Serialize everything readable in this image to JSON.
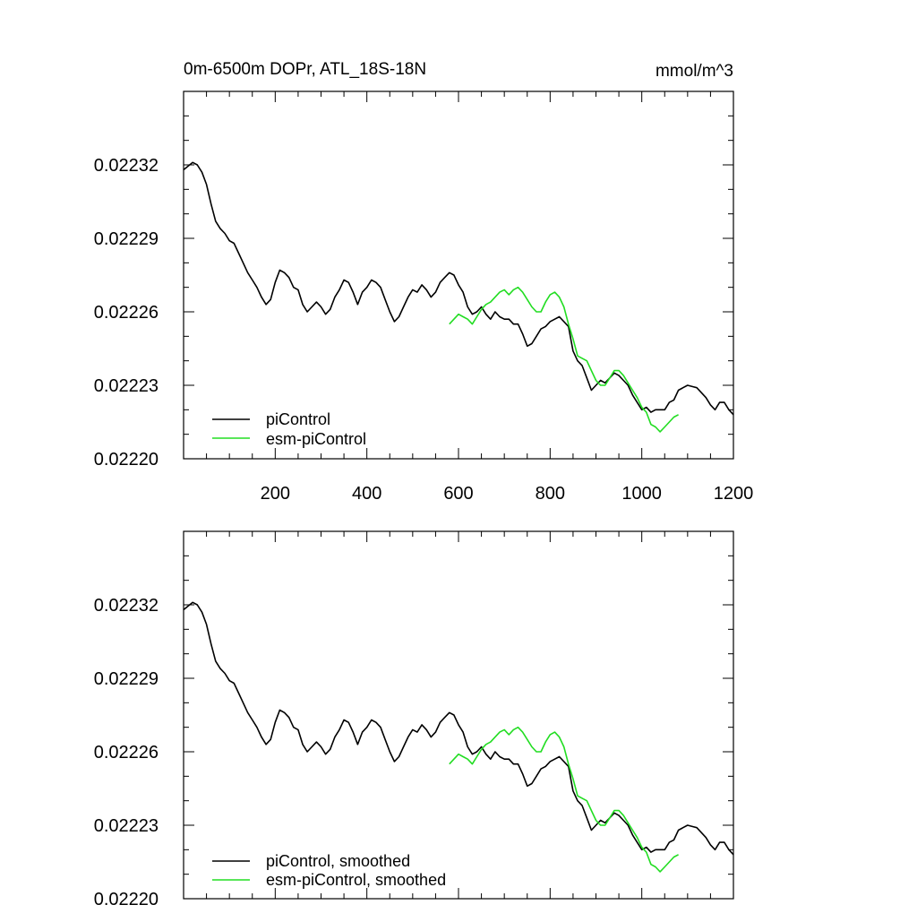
{
  "chart_data": [
    {
      "type": "line",
      "panel": "raw",
      "title": "0m-6500m DOPr, ATL_18S-18N",
      "units": "mmol/m^3",
      "xlim": [
        0,
        1200
      ],
      "ylim": [
        0.0222,
        0.02235
      ],
      "xticks": [
        200,
        400,
        600,
        800,
        1000,
        1200
      ],
      "xtick_labels": [
        "200",
        "400",
        "600",
        "800",
        "1000",
        "1200"
      ],
      "yticks": [
        0.0222,
        0.02223,
        0.02226,
        0.02229,
        0.02232
      ],
      "ytick_labels": [
        "0.02220",
        "0.02223",
        "0.02226",
        "0.02229",
        "0.02232"
      ],
      "legend_position": "bottom-left",
      "series": [
        {
          "name": "piControl",
          "color": "#000000",
          "x": [
            0,
            10,
            20,
            30,
            40,
            50,
            60,
            70,
            80,
            90,
            100,
            110,
            120,
            130,
            140,
            150,
            160,
            170,
            180,
            190,
            200,
            210,
            220,
            230,
            240,
            250,
            260,
            270,
            280,
            290,
            300,
            310,
            320,
            330,
            340,
            350,
            360,
            370,
            380,
            390,
            400,
            410,
            420,
            430,
            440,
            450,
            460,
            470,
            480,
            490,
            500,
            510,
            520,
            530,
            540,
            550,
            560,
            570,
            580,
            590,
            600,
            610,
            620,
            630,
            640,
            650,
            660,
            670,
            680,
            690,
            700,
            710,
            720,
            730,
            740,
            750,
            760,
            770,
            780,
            790,
            800,
            810,
            820,
            830,
            840,
            850,
            860,
            870,
            880,
            890,
            900,
            910,
            920,
            930,
            940,
            950,
            960,
            970,
            980,
            990,
            1000,
            1010,
            1020,
            1030,
            1040,
            1050,
            1060,
            1070,
            1080,
            1090,
            1100,
            1110,
            1120,
            1130,
            1140,
            1150,
            1160,
            1170,
            1180,
            1190,
            1200
          ],
          "values": [
            0.022318,
            0.0223195,
            0.022321,
            0.02232,
            0.022317,
            0.022312,
            0.022304,
            0.022297,
            0.022294,
            0.022292,
            0.022289,
            0.022288,
            0.022284,
            0.02228,
            0.022276,
            0.022273,
            0.02227,
            0.022266,
            0.022263,
            0.022265,
            0.022272,
            0.022277,
            0.022276,
            0.022274,
            0.02227,
            0.022269,
            0.022263,
            0.02226,
            0.022262,
            0.022264,
            0.022262,
            0.022259,
            0.022261,
            0.022266,
            0.022269,
            0.022273,
            0.022272,
            0.022268,
            0.022263,
            0.022268,
            0.02227,
            0.022273,
            0.022272,
            0.02227,
            0.022265,
            0.02226,
            0.022256,
            0.022258,
            0.022262,
            0.022266,
            0.022269,
            0.022268,
            0.022271,
            0.022269,
            0.022266,
            0.022268,
            0.022272,
            0.022274,
            0.022276,
            0.022275,
            0.022271,
            0.022268,
            0.022262,
            0.022259,
            0.02226,
            0.022262,
            0.022259,
            0.022257,
            0.02226,
            0.022258,
            0.022257,
            0.022257,
            0.022255,
            0.022255,
            0.022251,
            0.022246,
            0.022247,
            0.02225,
            0.022253,
            0.022254,
            0.022256,
            0.022257,
            0.022258,
            0.022256,
            0.022254,
            0.022244,
            0.02224,
            0.022238,
            0.022233,
            0.022228,
            0.02223,
            0.022232,
            0.022231,
            0.022233,
            0.022235,
            0.022234,
            0.022232,
            0.02223,
            0.022226,
            0.022223,
            0.02222,
            0.022221,
            0.022219,
            0.02222,
            0.02222,
            0.02222,
            0.022223,
            0.022224,
            0.022228,
            0.022229,
            0.02223,
            0.0222295,
            0.022229,
            0.022227,
            0.022225,
            0.022222,
            0.02222,
            0.022223,
            0.022223,
            0.02222,
            0.022218
          ]
        },
        {
          "name": "esm-piControl",
          "color": "#22dd22",
          "x": [
            580,
            590,
            600,
            610,
            620,
            630,
            640,
            650,
            660,
            670,
            680,
            690,
            700,
            710,
            720,
            730,
            740,
            750,
            760,
            770,
            780,
            790,
            800,
            810,
            820,
            830,
            840,
            850,
            860,
            870,
            880,
            890,
            900,
            910,
            920,
            930,
            940,
            950,
            960,
            970,
            980,
            990,
            1000,
            1010,
            1020,
            1030,
            1040,
            1050,
            1060,
            1070,
            1080
          ],
          "values": [
            0.022255,
            0.022257,
            0.022259,
            0.022258,
            0.022257,
            0.022255,
            0.022258,
            0.022261,
            0.022263,
            0.022264,
            0.022266,
            0.022268,
            0.022269,
            0.022267,
            0.022269,
            0.02227,
            0.022268,
            0.022265,
            0.022262,
            0.02226,
            0.02226,
            0.022264,
            0.022267,
            0.022268,
            0.022266,
            0.022262,
            0.022255,
            0.022249,
            0.022242,
            0.022241,
            0.02224,
            0.022236,
            0.022232,
            0.02223,
            0.02223,
            0.022233,
            0.022236,
            0.022236,
            0.022234,
            0.022231,
            0.022228,
            0.022225,
            0.022221,
            0.022219,
            0.022214,
            0.022213,
            0.022211,
            0.022213,
            0.022215,
            0.022217,
            0.022218
          ]
        }
      ]
    },
    {
      "type": "line",
      "panel": "smoothed",
      "xlim": [
        0,
        1200
      ],
      "ylim": [
        0.0222,
        0.02235
      ],
      "yticks": [
        0.0222,
        0.02223,
        0.02226,
        0.02229,
        0.02232
      ],
      "ytick_labels": [
        "0.02220",
        "0.02223",
        "0.02226",
        "0.02229",
        "0.02232"
      ],
      "legend_position": "bottom-left",
      "series": [
        {
          "name": "piControl, smoothed",
          "color": "#000000",
          "x": [
            0,
            10,
            20,
            30,
            40,
            50,
            60,
            70,
            80,
            90,
            100,
            110,
            120,
            130,
            140,
            150,
            160,
            170,
            180,
            190,
            200,
            210,
            220,
            230,
            240,
            250,
            260,
            270,
            280,
            290,
            300,
            310,
            320,
            330,
            340,
            350,
            360,
            370,
            380,
            390,
            400,
            410,
            420,
            430,
            440,
            450,
            460,
            470,
            480,
            490,
            500,
            510,
            520,
            530,
            540,
            550,
            560,
            570,
            580,
            590,
            600,
            610,
            620,
            630,
            640,
            650,
            660,
            670,
            680,
            690,
            700,
            710,
            720,
            730,
            740,
            750,
            760,
            770,
            780,
            790,
            800,
            810,
            820,
            830,
            840,
            850,
            860,
            870,
            880,
            890,
            900,
            910,
            920,
            930,
            940,
            950,
            960,
            970,
            980,
            990,
            1000,
            1010,
            1020,
            1030,
            1040,
            1050,
            1060,
            1070,
            1080,
            1090,
            1100,
            1110,
            1120,
            1130,
            1140,
            1150,
            1160,
            1170,
            1180,
            1190,
            1200
          ],
          "values": [
            0.022318,
            0.0223195,
            0.022321,
            0.02232,
            0.022317,
            0.022312,
            0.022304,
            0.022297,
            0.022294,
            0.022292,
            0.022289,
            0.022288,
            0.022284,
            0.02228,
            0.022276,
            0.022273,
            0.02227,
            0.022266,
            0.022263,
            0.022265,
            0.022272,
            0.022277,
            0.022276,
            0.022274,
            0.02227,
            0.022269,
            0.022263,
            0.02226,
            0.022262,
            0.022264,
            0.022262,
            0.022259,
            0.022261,
            0.022266,
            0.022269,
            0.022273,
            0.022272,
            0.022268,
            0.022263,
            0.022268,
            0.02227,
            0.022273,
            0.022272,
            0.02227,
            0.022265,
            0.02226,
            0.022256,
            0.022258,
            0.022262,
            0.022266,
            0.022269,
            0.022268,
            0.022271,
            0.022269,
            0.022266,
            0.022268,
            0.022272,
            0.022274,
            0.022276,
            0.022275,
            0.022271,
            0.022268,
            0.022262,
            0.022259,
            0.02226,
            0.022262,
            0.022259,
            0.022257,
            0.02226,
            0.022258,
            0.022257,
            0.022257,
            0.022255,
            0.022255,
            0.022251,
            0.022246,
            0.022247,
            0.02225,
            0.022253,
            0.022254,
            0.022256,
            0.022257,
            0.022258,
            0.022256,
            0.022254,
            0.022244,
            0.02224,
            0.022238,
            0.022233,
            0.022228,
            0.02223,
            0.022232,
            0.022231,
            0.022233,
            0.022235,
            0.022234,
            0.022232,
            0.02223,
            0.022226,
            0.022223,
            0.02222,
            0.022221,
            0.022219,
            0.02222,
            0.02222,
            0.02222,
            0.022223,
            0.022224,
            0.022228,
            0.022229,
            0.02223,
            0.0222295,
            0.022229,
            0.022227,
            0.022225,
            0.022222,
            0.02222,
            0.022223,
            0.022223,
            0.02222,
            0.022218
          ]
        },
        {
          "name": "esm-piControl, smoothed",
          "color": "#22dd22",
          "x": [
            580,
            590,
            600,
            610,
            620,
            630,
            640,
            650,
            660,
            670,
            680,
            690,
            700,
            710,
            720,
            730,
            740,
            750,
            760,
            770,
            780,
            790,
            800,
            810,
            820,
            830,
            840,
            850,
            860,
            870,
            880,
            890,
            900,
            910,
            920,
            930,
            940,
            950,
            960,
            970,
            980,
            990,
            1000,
            1010,
            1020,
            1030,
            1040,
            1050,
            1060,
            1070,
            1080
          ],
          "values": [
            0.022255,
            0.022257,
            0.022259,
            0.022258,
            0.022257,
            0.022255,
            0.022258,
            0.022261,
            0.022263,
            0.022264,
            0.022266,
            0.022268,
            0.022269,
            0.022267,
            0.022269,
            0.02227,
            0.022268,
            0.022265,
            0.022262,
            0.02226,
            0.02226,
            0.022264,
            0.022267,
            0.022268,
            0.022266,
            0.022262,
            0.022255,
            0.022249,
            0.022242,
            0.022241,
            0.02224,
            0.022236,
            0.022232,
            0.02223,
            0.02223,
            0.022233,
            0.022236,
            0.022236,
            0.022234,
            0.022231,
            0.022228,
            0.022225,
            0.022221,
            0.022219,
            0.022214,
            0.022213,
            0.022211,
            0.022213,
            0.022215,
            0.022217,
            0.022218
          ]
        }
      ]
    }
  ]
}
